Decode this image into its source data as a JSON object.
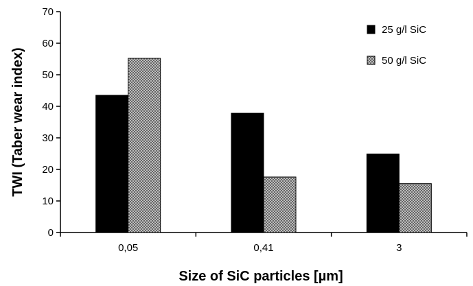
{
  "chart_data": {
    "type": "bar",
    "categories": [
      "0,05",
      "0,41",
      "3"
    ],
    "series": [
      {
        "name": "25 g/l SiC",
        "values": [
          43.5,
          37.8,
          24.9
        ],
        "color": "#000000",
        "pattern": "solid"
      },
      {
        "name": "50 g/l SiC",
        "values": [
          55.2,
          17.6,
          15.5
        ],
        "color": "#808080",
        "pattern": "crosshatch"
      }
    ],
    "xlabel": "Size of SiC particles [µm]",
    "ylabel": "TWI (Taber wear index)",
    "ylim": [
      0,
      70
    ],
    "yticks": [
      0,
      10,
      20,
      30,
      40,
      50,
      60,
      70
    ],
    "grid": false,
    "legend": "top-right"
  }
}
